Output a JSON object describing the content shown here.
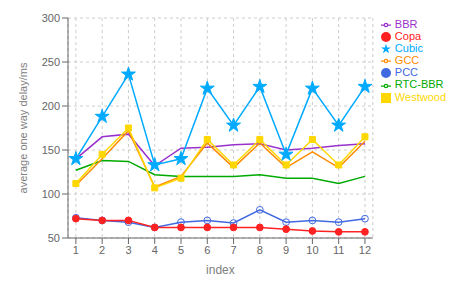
{
  "chart_data": {
    "type": "line",
    "x": [
      1,
      2,
      3,
      4,
      5,
      6,
      7,
      8,
      9,
      10,
      11,
      12
    ],
    "series": [
      {
        "name": "BBR",
        "color": "#9932CC",
        "values": [
          140,
          165,
          168,
          132,
          152,
          153,
          156,
          157,
          150,
          152,
          155,
          157
        ]
      },
      {
        "name": "RTC-BBR",
        "color": "#00AA00",
        "values": [
          127,
          138,
          137,
          122,
          120,
          120,
          120,
          122,
          118,
          118,
          112,
          120
        ]
      },
      {
        "name": "Cubic",
        "color": "#00AAFF",
        "marker": "star",
        "values": [
          140,
          188,
          236,
          133,
          140,
          220,
          178,
          222,
          145,
          220,
          178,
          222
        ]
      },
      {
        "name": "GCC",
        "color": "#FF8C00",
        "values": [
          110,
          140,
          172,
          108,
          120,
          158,
          130,
          158,
          130,
          148,
          130,
          160
        ]
      },
      {
        "name": "Westwood",
        "color": "#FFD700",
        "marker": "square",
        "values": [
          112,
          145,
          175,
          107,
          118,
          162,
          133,
          162,
          133,
          162,
          133,
          165
        ]
      },
      {
        "name": "PCC",
        "color": "#4169E1",
        "marker": "open_circle",
        "values": [
          73,
          70,
          68,
          62,
          68,
          70,
          67,
          82,
          68,
          70,
          68,
          72
        ]
      },
      {
        "name": "Copa",
        "color": "#FF2222",
        "marker": "circle",
        "values": [
          72,
          70,
          70,
          62,
          62,
          62,
          62,
          62,
          60,
          58,
          57,
          57
        ]
      }
    ],
    "xlabel": "index",
    "ylabel": "average one way delay/ms",
    "xlim": [
      0.7,
      12.3
    ],
    "xticks": [
      1,
      2,
      3,
      4,
      5,
      6,
      7,
      8,
      9,
      10,
      11,
      12
    ],
    "ylim": [
      50,
      300
    ],
    "yticks": [
      50,
      100,
      150,
      200,
      250,
      300
    ],
    "grid": true,
    "legend": "upper right"
  }
}
